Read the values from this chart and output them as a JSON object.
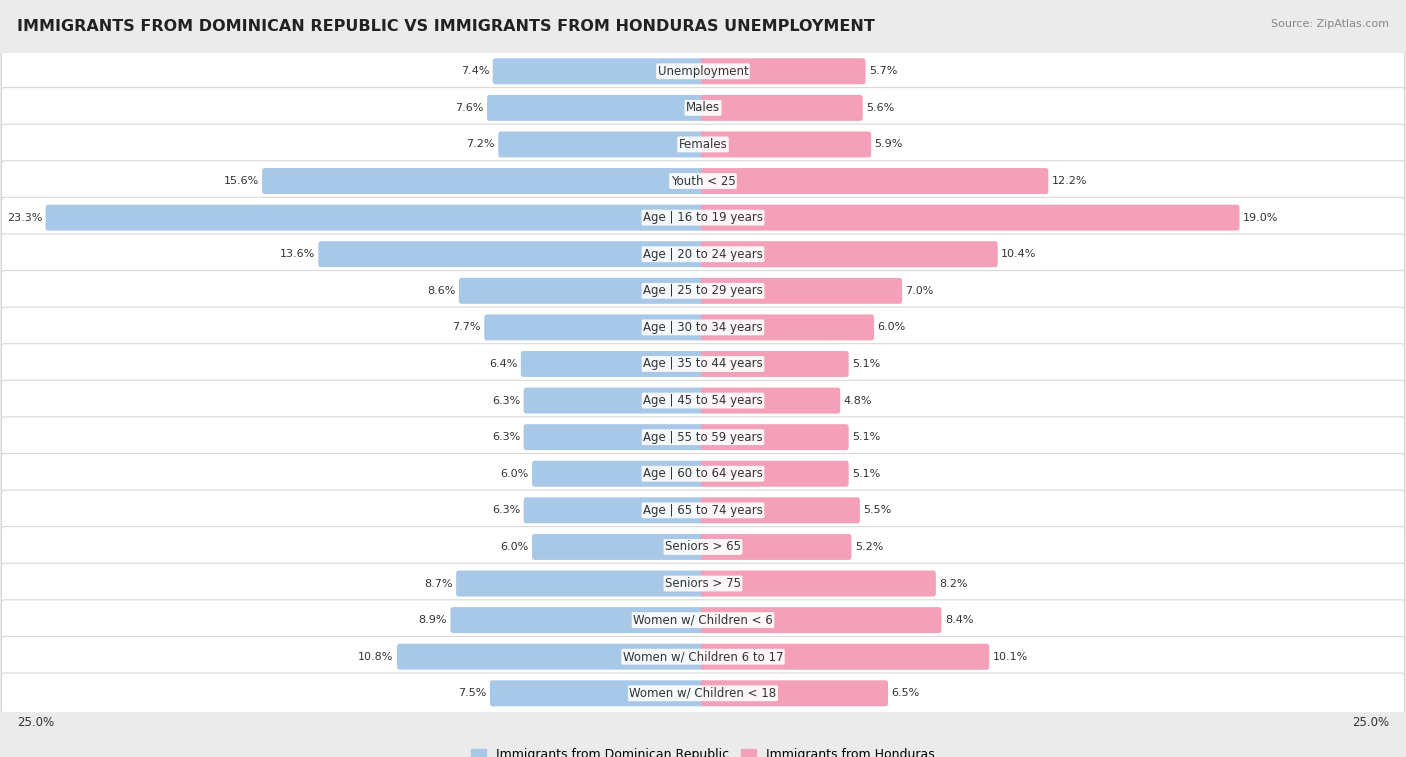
{
  "title": "IMMIGRANTS FROM DOMINICAN REPUBLIC VS IMMIGRANTS FROM HONDURAS UNEMPLOYMENT",
  "source": "Source: ZipAtlas.com",
  "categories": [
    "Unemployment",
    "Males",
    "Females",
    "Youth < 25",
    "Age | 16 to 19 years",
    "Age | 20 to 24 years",
    "Age | 25 to 29 years",
    "Age | 30 to 34 years",
    "Age | 35 to 44 years",
    "Age | 45 to 54 years",
    "Age | 55 to 59 years",
    "Age | 60 to 64 years",
    "Age | 65 to 74 years",
    "Seniors > 65",
    "Seniors > 75",
    "Women w/ Children < 6",
    "Women w/ Children 6 to 17",
    "Women w/ Children < 18"
  ],
  "left_values": [
    7.4,
    7.6,
    7.2,
    15.6,
    23.3,
    13.6,
    8.6,
    7.7,
    6.4,
    6.3,
    6.3,
    6.0,
    6.3,
    6.0,
    8.7,
    8.9,
    10.8,
    7.5
  ],
  "right_values": [
    5.7,
    5.6,
    5.9,
    12.2,
    19.0,
    10.4,
    7.0,
    6.0,
    5.1,
    4.8,
    5.1,
    5.1,
    5.5,
    5.2,
    8.2,
    8.4,
    10.1,
    6.5
  ],
  "left_color": "#a8c8e8",
  "right_color": "#f4a0b8",
  "left_label": "Immigrants from Dominican Republic",
  "right_label": "Immigrants from Honduras",
  "axis_max": 25.0,
  "background_color": "#ebebeb",
  "bar_bg_color": "#ffffff",
  "title_fontsize": 11.5,
  "label_fontsize": 8.5,
  "value_fontsize": 8,
  "legend_fontsize": 9
}
